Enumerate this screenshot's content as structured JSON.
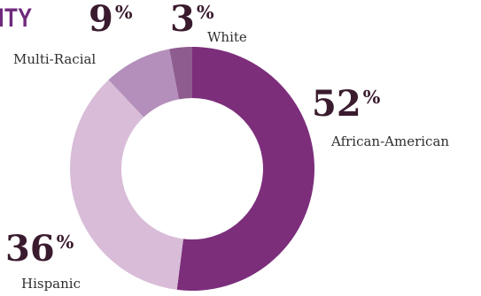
{
  "partial_title": "ITY",
  "chart_data": {
    "type": "pie",
    "variant": "donut",
    "slices": [
      {
        "name": "African-American",
        "value": 52,
        "pct_label": "52",
        "color": "#7c2e7b"
      },
      {
        "name": "Hispanic",
        "value": 36,
        "pct_label": "36",
        "color": "#d8bcd8"
      },
      {
        "name": "Multi-Racial",
        "value": 9,
        "pct_label": "9",
        "color": "#b48fbb"
      },
      {
        "name": "White",
        "value": 3,
        "pct_label": "3",
        "color": "#8f5c8f"
      }
    ],
    "percent_sign": "%",
    "start_angle_deg": 0,
    "direction": "clockwise"
  }
}
